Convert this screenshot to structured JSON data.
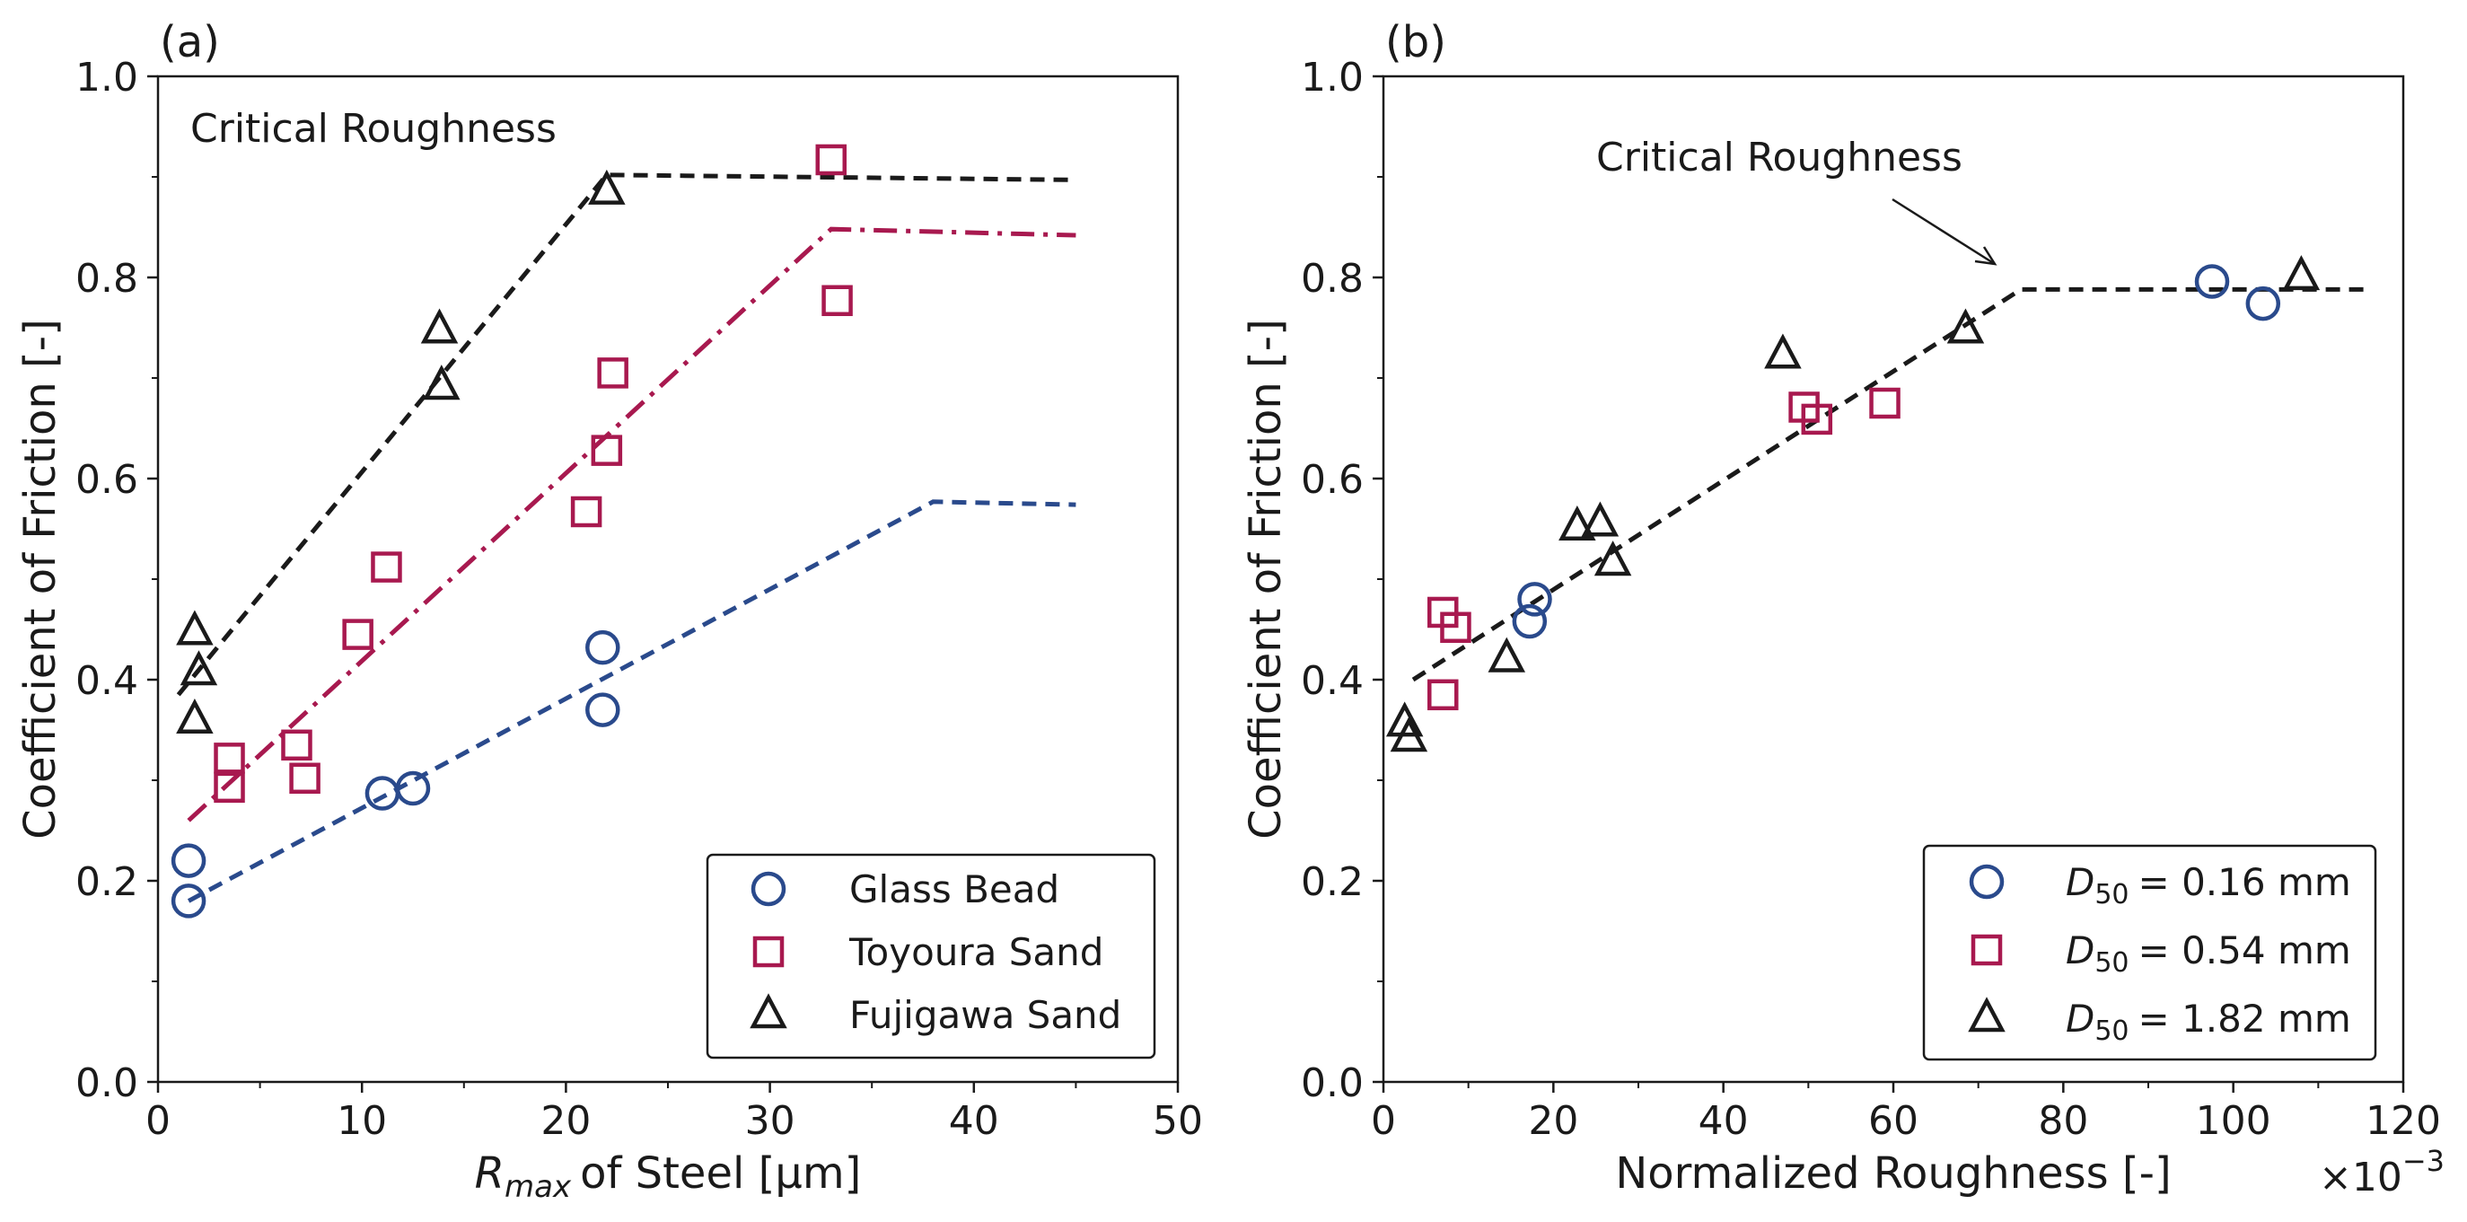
{
  "colors": {
    "blue": "#2a4a8c",
    "red": "#a8194f",
    "black": "#1a1a1a"
  },
  "chart_data": [
    {
      "type": "scatter",
      "panel_label": "(a)",
      "title": "",
      "xlabel": "of Steel [μm]",
      "xlabel_symbol": "R",
      "xlabel_sub": "max",
      "ylabel": "Coefficient of Friction [-]",
      "xlim": [
        0,
        50
      ],
      "ylim": [
        0,
        1.0
      ],
      "xticks": [
        0,
        10,
        20,
        30,
        40,
        50
      ],
      "xtick_labels": [
        "0",
        "10",
        "20",
        "30",
        "40",
        "50"
      ],
      "yticks": [
        0,
        0.2,
        0.4,
        0.6,
        0.8,
        1.0
      ],
      "ytick_labels": [
        "0.0",
        "0.2",
        "0.4",
        "0.6",
        "0.8",
        "1.0"
      ],
      "annotation": "Critical Roughness",
      "legend_position": "lower-right",
      "series": [
        {
          "name": "Glass Bead",
          "marker": "circle",
          "color": "#2a4a8c",
          "points": [
            [
              1.5,
              0.22
            ],
            [
              1.5,
              0.18
            ],
            [
              11.0,
              0.287
            ],
            [
              12.5,
              0.292
            ],
            [
              21.8,
              0.432
            ],
            [
              21.8,
              0.37
            ]
          ],
          "fit": {
            "style": "dashed",
            "points": [
              [
                1.5,
                0.18
              ],
              [
                38.0,
                0.577
              ],
              [
                45.0,
                0.574
              ]
            ]
          }
        },
        {
          "name": "Toyoura Sand",
          "marker": "square",
          "color": "#a8194f",
          "points": [
            [
              3.5,
              0.322
            ],
            [
              3.5,
              0.293
            ],
            [
              6.8,
              0.335
            ],
            [
              7.2,
              0.302
            ],
            [
              9.8,
              0.445
            ],
            [
              11.2,
              0.512
            ],
            [
              21.0,
              0.567
            ],
            [
              22.0,
              0.628
            ],
            [
              22.3,
              0.705
            ],
            [
              33.0,
              0.917
            ],
            [
              33.3,
              0.777
            ]
          ],
          "fit": {
            "style": "dashdot",
            "points": [
              [
                1.5,
                0.26
              ],
              [
                33.0,
                0.848
              ],
              [
                45.0,
                0.842
              ]
            ]
          }
        },
        {
          "name": "Fujigawa Sand",
          "marker": "triangle",
          "color": "#1a1a1a",
          "points": [
            [
              1.8,
              0.448
            ],
            [
              2.0,
              0.408
            ],
            [
              1.8,
              0.36
            ],
            [
              13.8,
              0.748
            ],
            [
              13.9,
              0.692
            ],
            [
              22.0,
              0.886
            ]
          ],
          "fit": {
            "style": "dashed",
            "points": [
              [
                1.0,
                0.385
              ],
              [
                22.0,
                0.902
              ],
              [
                45.0,
                0.897
              ]
            ]
          }
        }
      ]
    },
    {
      "type": "scatter",
      "panel_label": "(b)",
      "title": "",
      "xlabel": "Normalized Roughness [-]",
      "ylabel": "Coefficient of Friction [-]",
      "xlim": [
        0,
        120
      ],
      "ylim": [
        0,
        1.0
      ],
      "xticks": [
        0,
        20,
        40,
        60,
        80,
        100,
        120
      ],
      "xtick_labels": [
        "0",
        "20",
        "40",
        "60",
        "80",
        "100",
        "120"
      ],
      "yticks": [
        0,
        0.2,
        0.4,
        0.6,
        0.8,
        1.0
      ],
      "ytick_labels": [
        "0.0",
        "0.2",
        "0.4",
        "0.6",
        "0.8",
        "1.0"
      ],
      "x_multiplier": "×10",
      "x_multiplier_exp": "−3",
      "annotation": "Critical Roughness",
      "legend_position": "lower-right",
      "series": [
        {
          "name": "= 0.16 mm",
          "legend_symbol": "D",
          "legend_sub": "50",
          "marker": "circle",
          "color": "#2a4a8c",
          "points": [
            [
              17.2,
              0.458
            ],
            [
              17.8,
              0.48
            ],
            [
              97.5,
              0.796
            ],
            [
              103.5,
              0.774
            ]
          ]
        },
        {
          "name": "= 0.54 mm",
          "legend_symbol": "D",
          "legend_sub": "50",
          "marker": "square",
          "color": "#a8194f",
          "points": [
            [
              7.0,
              0.467
            ],
            [
              8.5,
              0.452
            ],
            [
              7.0,
              0.385
            ],
            [
              49.5,
              0.671
            ],
            [
              51.0,
              0.659
            ],
            [
              59.0,
              0.675
            ]
          ]
        },
        {
          "name": "= 1.82 mm",
          "legend_symbol": "D",
          "legend_sub": "50",
          "marker": "triangle",
          "color": "#1a1a1a",
          "points": [
            [
              2.5,
              0.357
            ],
            [
              3.0,
              0.342
            ],
            [
              14.5,
              0.421
            ],
            [
              22.8,
              0.552
            ],
            [
              25.5,
              0.556
            ],
            [
              27.0,
              0.517
            ],
            [
              47.0,
              0.723
            ],
            [
              68.5,
              0.748
            ],
            [
              108.0,
              0.801
            ]
          ]
        }
      ],
      "fit": {
        "style": "dashed",
        "color": "#1a1a1a",
        "points": [
          [
            3.5,
            0.4
          ],
          [
            75.0,
            0.788
          ],
          [
            116.0,
            0.788
          ]
        ]
      }
    }
  ]
}
